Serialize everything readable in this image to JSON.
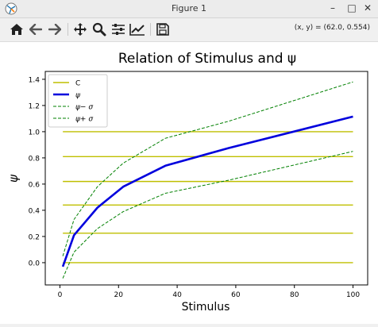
{
  "window": {
    "title": "Figure 1",
    "controls": {
      "minimize": "–",
      "maximize": "□",
      "close": "✕"
    }
  },
  "toolbar": {
    "buttons": [
      {
        "name": "home-icon",
        "icon": "home"
      },
      {
        "name": "back-arrow-icon",
        "icon": "arrow-left"
      },
      {
        "name": "forward-arrow-icon",
        "icon": "arrow-right"
      },
      {
        "name": "pan-icon",
        "icon": "move"
      },
      {
        "name": "zoom-icon",
        "icon": "magnifier"
      },
      {
        "name": "subplots-icon",
        "icon": "sliders"
      },
      {
        "name": "axes-edit-icon",
        "icon": "line-chart"
      },
      {
        "name": "save-icon",
        "icon": "floppy-disk"
      }
    ],
    "coords": "(x, y) = (62.0, 0.554)"
  },
  "chart_data": {
    "type": "line",
    "title": "Relation of Stimulus and ψ",
    "xlabel": "Stimulus",
    "ylabel": "ψ",
    "xlim": [
      -5,
      105
    ],
    "ylim": [
      -0.17,
      1.46
    ],
    "xticks": [
      0,
      20,
      40,
      60,
      80,
      100
    ],
    "yticks": [
      0.0,
      0.2,
      0.4,
      0.6,
      0.8,
      1.0,
      1.2,
      1.4
    ],
    "legend_position": "top-left",
    "grid": false,
    "colors": {
      "C": "#bfbf00",
      "psi": "#0000dd",
      "band": "#008000"
    },
    "hlines": {
      "name": "C",
      "values": [
        0.0,
        0.225,
        0.44,
        0.62,
        0.81,
        1.0
      ],
      "xmin": 1,
      "xmax": 100
    },
    "series": [
      {
        "name": "ψ",
        "style": "solid",
        "x": [
          1,
          4.8,
          12.8,
          21.6,
          36,
          57.6,
          100
        ],
        "y": [
          -0.03,
          0.21,
          0.42,
          0.58,
          0.74,
          0.875,
          1.115
        ]
      },
      {
        "name": "ψ− σ",
        "style": "dashed",
        "x": [
          1,
          4.8,
          12.8,
          21.6,
          36,
          57.6,
          100
        ],
        "y": [
          -0.12,
          0.08,
          0.26,
          0.39,
          0.53,
          0.63,
          0.85
        ]
      },
      {
        "name": "ψ+ σ",
        "style": "dashed",
        "x": [
          1,
          4.8,
          12.8,
          21.6,
          36,
          57.6,
          100
        ],
        "y": [
          0.05,
          0.33,
          0.58,
          0.76,
          0.95,
          1.08,
          1.38
        ]
      }
    ]
  }
}
